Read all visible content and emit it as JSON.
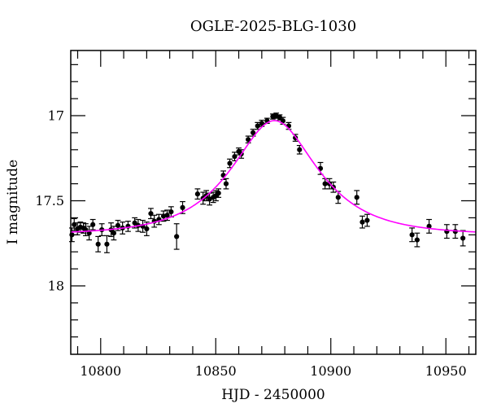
{
  "page": {
    "background": "#ffffff",
    "frame_color": "#000000"
  },
  "chart_data": {
    "type": "scatter",
    "title": "OGLE-2025-BLG-1030",
    "xlabel": "HJD - 2450000",
    "ylabel": "I magnitude",
    "x_range": [
      10787,
      10963
    ],
    "y_range_top_mag": 16.617,
    "y_range_bottom_mag": 18.402,
    "y_axis_inverted_magnitude": true,
    "grid": false,
    "legend": false,
    "x_major_ticks": [
      10800,
      10850,
      10900,
      10950
    ],
    "x_tick_labels": [
      "10800",
      "10850",
      "10900",
      "10950"
    ],
    "x_minor_step": 10,
    "y_major_ticks": [
      17,
      17.5,
      18
    ],
    "y_tick_labels": [
      "17",
      "17.5",
      "18"
    ],
    "y_minor_step": 0.1,
    "marker_color": "#000000",
    "model_curve": {
      "type": "paczynski",
      "t0": 10875.5,
      "tE": 29.0,
      "u0": 0.612,
      "baseline_mag": 17.7,
      "peak_mag": 17.02,
      "color": "#ff00ff"
    },
    "points": [
      [
        10787.5,
        17.7,
        0.04
      ],
      [
        10788.5,
        17.64,
        0.035
      ],
      [
        10789.9,
        17.665,
        0.035
      ],
      [
        10791.2,
        17.655,
        0.03
      ],
      [
        10792.5,
        17.66,
        0.03
      ],
      [
        10793.5,
        17.67,
        0.035
      ],
      [
        10795.0,
        17.69,
        0.04
      ],
      [
        10796.6,
        17.64,
        0.03
      ],
      [
        10798.9,
        17.755,
        0.045
      ],
      [
        10800.5,
        17.67,
        0.035
      ],
      [
        10802.7,
        17.755,
        0.05
      ],
      [
        10804.5,
        17.67,
        0.04
      ],
      [
        10805.7,
        17.69,
        0.04
      ],
      [
        10807.5,
        17.645,
        0.03
      ],
      [
        10809.5,
        17.66,
        0.035
      ],
      [
        10811.9,
        17.65,
        0.03
      ],
      [
        10814.8,
        17.63,
        0.03
      ],
      [
        10816.3,
        17.645,
        0.035
      ],
      [
        10818.3,
        17.65,
        0.035
      ],
      [
        10820.0,
        17.665,
        0.04
      ],
      [
        10821.8,
        17.575,
        0.03
      ],
      [
        10823.3,
        17.62,
        0.035
      ],
      [
        10825.3,
        17.61,
        0.03
      ],
      [
        10827.3,
        17.59,
        0.03
      ],
      [
        10828.9,
        17.585,
        0.03
      ],
      [
        10830.6,
        17.565,
        0.03
      ],
      [
        10833.0,
        17.71,
        0.075
      ],
      [
        10835.6,
        17.54,
        0.035
      ],
      [
        10842.1,
        17.46,
        0.03
      ],
      [
        10844.5,
        17.485,
        0.035
      ],
      [
        10845.9,
        17.47,
        0.03
      ],
      [
        10847.3,
        17.49,
        0.035
      ],
      [
        10848.9,
        17.48,
        0.03
      ],
      [
        10850.1,
        17.47,
        0.03
      ],
      [
        10851.2,
        17.455,
        0.025
      ],
      [
        10853.3,
        17.35,
        0.025
      ],
      [
        10854.5,
        17.4,
        0.03
      ],
      [
        10856.1,
        17.28,
        0.025
      ],
      [
        10858.2,
        17.24,
        0.025
      ],
      [
        10860.0,
        17.21,
        0.02
      ],
      [
        10861.1,
        17.225,
        0.025
      ],
      [
        10864.1,
        17.14,
        0.02
      ],
      [
        10866.2,
        17.1,
        0.02
      ],
      [
        10868.2,
        17.06,
        0.02
      ],
      [
        10870.0,
        17.045,
        0.018
      ],
      [
        10872.3,
        17.03,
        0.015
      ],
      [
        10874.8,
        17.005,
        0.015
      ],
      [
        10876.3,
        17.0,
        0.015
      ],
      [
        10877.8,
        17.01,
        0.015
      ],
      [
        10879.2,
        17.03,
        0.02
      ],
      [
        10881.7,
        17.06,
        0.02
      ],
      [
        10884.6,
        17.13,
        0.02
      ],
      [
        10886.4,
        17.2,
        0.025
      ],
      [
        10895.5,
        17.31,
        0.035
      ],
      [
        10897.5,
        17.4,
        0.03
      ],
      [
        10899.4,
        17.4,
        0.03
      ],
      [
        10901.1,
        17.42,
        0.03
      ],
      [
        10903.2,
        17.48,
        0.035
      ],
      [
        10911.3,
        17.48,
        0.04
      ],
      [
        10913.7,
        17.625,
        0.035
      ],
      [
        10915.8,
        17.615,
        0.035
      ],
      [
        10935.3,
        17.7,
        0.04
      ],
      [
        10937.5,
        17.73,
        0.04
      ],
      [
        10942.7,
        17.65,
        0.04
      ],
      [
        10950.4,
        17.68,
        0.04
      ],
      [
        10954.1,
        17.68,
        0.04
      ],
      [
        10957.4,
        17.72,
        0.045
      ]
    ]
  }
}
